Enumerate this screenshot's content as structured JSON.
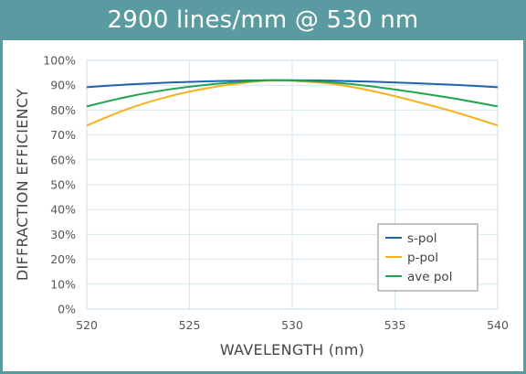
{
  "chart_data": {
    "type": "line",
    "title": "2900 lines/mm @ 530 nm",
    "xlabel": "WAVELENGTH (nm)",
    "ylabel": "DIFFRACTION EFFICIENCY",
    "xlim": [
      520,
      540
    ],
    "ylim": [
      0,
      100
    ],
    "x_ticks": [
      520,
      525,
      530,
      535,
      540
    ],
    "x_tick_labels": [
      "520",
      "525",
      "530",
      "535",
      "540"
    ],
    "y_ticks": [
      0,
      10,
      20,
      30,
      40,
      50,
      60,
      70,
      80,
      90,
      100
    ],
    "y_tick_labels": [
      "0%",
      "10%",
      "20%",
      "30%",
      "40%",
      "50%",
      "60%",
      "70%",
      "80%",
      "90%",
      "100%"
    ],
    "grid": true,
    "legend_position": "bottom-right",
    "x": [
      520,
      522,
      524,
      526,
      528,
      529,
      530,
      532,
      534,
      536,
      538,
      540
    ],
    "series": [
      {
        "name": "s-pol",
        "color": "#1f63ad",
        "values": [
          89.2,
          90.3,
          91.1,
          91.6,
          91.9,
          92.0,
          92.0,
          91.8,
          91.4,
          90.8,
          90.1,
          89.2
        ]
      },
      {
        "name": "p-pol",
        "color": "#f5b21c",
        "values": [
          73.8,
          80.5,
          85.5,
          89.0,
          91.3,
          91.9,
          91.8,
          90.5,
          87.5,
          83.5,
          79.0,
          73.8
        ]
      },
      {
        "name": "ave pol",
        "color": "#20a452",
        "values": [
          81.5,
          85.4,
          88.3,
          90.3,
          91.6,
          92.0,
          91.9,
          91.1,
          89.4,
          87.1,
          84.5,
          81.5
        ]
      }
    ]
  }
}
